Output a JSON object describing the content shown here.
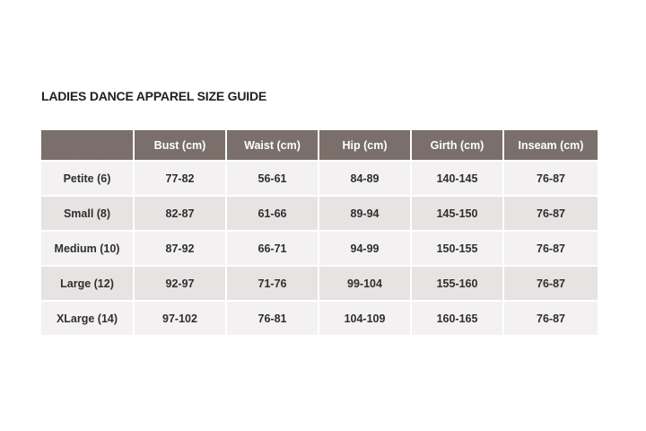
{
  "title": "LADIES DANCE APPAREL SIZE GUIDE",
  "table": {
    "corner": "",
    "headers": [
      "Bust (cm)",
      "Waist (cm)",
      "Hip (cm)",
      "Girth (cm)",
      "Inseam (cm)"
    ],
    "rows": [
      {
        "size": "Petite (6)",
        "bust": "77-82",
        "waist": "56-61",
        "hip": "84-89",
        "girth": "140-145",
        "inseam": "76-87"
      },
      {
        "size": "Small (8)",
        "bust": "82-87",
        "waist": "61-66",
        "hip": "89-94",
        "girth": "145-150",
        "inseam": "76-87"
      },
      {
        "size": "Medium (10)",
        "bust": "87-92",
        "waist": "66-71",
        "hip": "94-99",
        "girth": "150-155",
        "inseam": "76-87"
      },
      {
        "size": "Large (12)",
        "bust": "92-97",
        "waist": "71-76",
        "hip": "99-104",
        "girth": "155-160",
        "inseam": "76-87"
      },
      {
        "size": "XLarge (14)",
        "bust": "97-102",
        "waist": "76-81",
        "hip": "104-109",
        "girth": "160-165",
        "inseam": "76-87"
      }
    ]
  },
  "colors": {
    "header_bg": "#7a6f6a",
    "row_light": "#f3f1f1",
    "row_dark": "#e6e3e2",
    "text": "#2f2f2f"
  }
}
